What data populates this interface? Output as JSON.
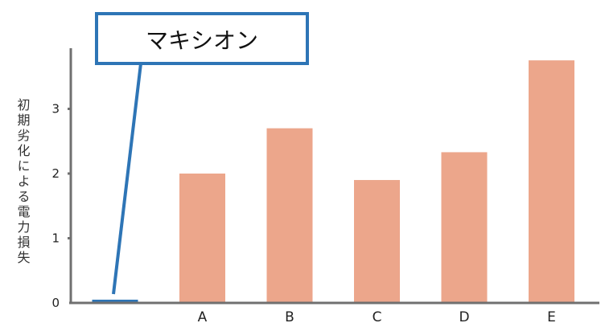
{
  "chart_data": {
    "type": "bar",
    "categories": [
      "",
      "A",
      "B",
      "C",
      "D",
      "E"
    ],
    "values": [
      0.05,
      2.0,
      2.7,
      1.9,
      2.33,
      3.75
    ],
    "ylabel": "初期劣化による電力損失",
    "yticks": [
      "0",
      "1",
      "2",
      "3"
    ],
    "ylim": [
      0,
      4.0
    ],
    "grid": false,
    "colors": {
      "bar": "#eca68b",
      "highlight": "#2e75b6",
      "axis": "#707070"
    },
    "annotation": {
      "text": "マキシオン",
      "target_category_index": 0
    }
  }
}
